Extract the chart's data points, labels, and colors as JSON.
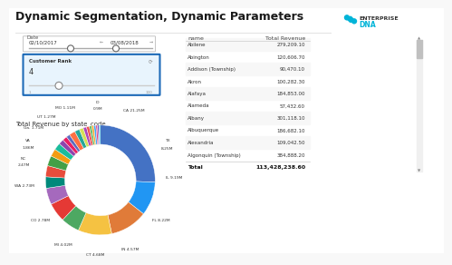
{
  "title": "Dynamic Segmentation, Dynamic Parameters",
  "bg_color": "#f8f8f8",
  "title_color": "#1a1a1a",
  "title_fontsize": 9,
  "table_headers": [
    "name",
    "Total Revenue"
  ],
  "table_rows": [
    [
      "Abilene",
      "279,209.10"
    ],
    [
      "Abington",
      "120,606.70"
    ],
    [
      "Addison (Township)",
      "90,470.10"
    ],
    [
      "Akron",
      "100,282.30"
    ],
    [
      "Alafaya",
      "184,853.00"
    ],
    [
      "Alameda",
      "57,432.60"
    ],
    [
      "Albany",
      "301,118.10"
    ],
    [
      "Albuquerque",
      "186,682.10"
    ],
    [
      "Alexandria",
      "109,042.50"
    ],
    [
      "Algonquin (Township)",
      "384,888.20"
    ]
  ],
  "table_total": [
    "Total",
    "113,428,238.60"
  ],
  "date_label": "Date",
  "date_start": "02/10/2017",
  "date_end": "03/08/2018",
  "slider_label": "Customer Rank",
  "slider_value": "4",
  "donut_title": "Total Revenue by state_code",
  "donut_values": [
    21.25,
    8.25,
    9.19,
    8.22,
    4.57,
    4.68,
    4.02,
    2.78,
    2.73,
    2.47,
    1.86,
    1.71,
    1.27,
    1.11,
    0.9,
    1.5,
    1.2,
    1.0,
    0.8,
    0.7,
    0.6,
    0.5,
    0.5,
    0.4,
    0.4,
    0.3
  ],
  "donut_colors": [
    "#4472c4",
    "#2196f3",
    "#e07b39",
    "#f5c242",
    "#4da862",
    "#e53935",
    "#a569bd",
    "#00897b",
    "#e74c3c",
    "#43a047",
    "#f39c12",
    "#1abc9c",
    "#8e44ad",
    "#e91e63",
    "#5c6bc0",
    "#ff7043",
    "#26a69a",
    "#d4e157",
    "#ab47bc",
    "#ef5350",
    "#66bb6a",
    "#ffa726",
    "#42a5f5",
    "#ec407a",
    "#7e57c2",
    "#26c6da"
  ],
  "panel_border_color": "#1e6bb8",
  "panel_fill": "#e8f4fd",
  "logo_color": "#00b4d8"
}
